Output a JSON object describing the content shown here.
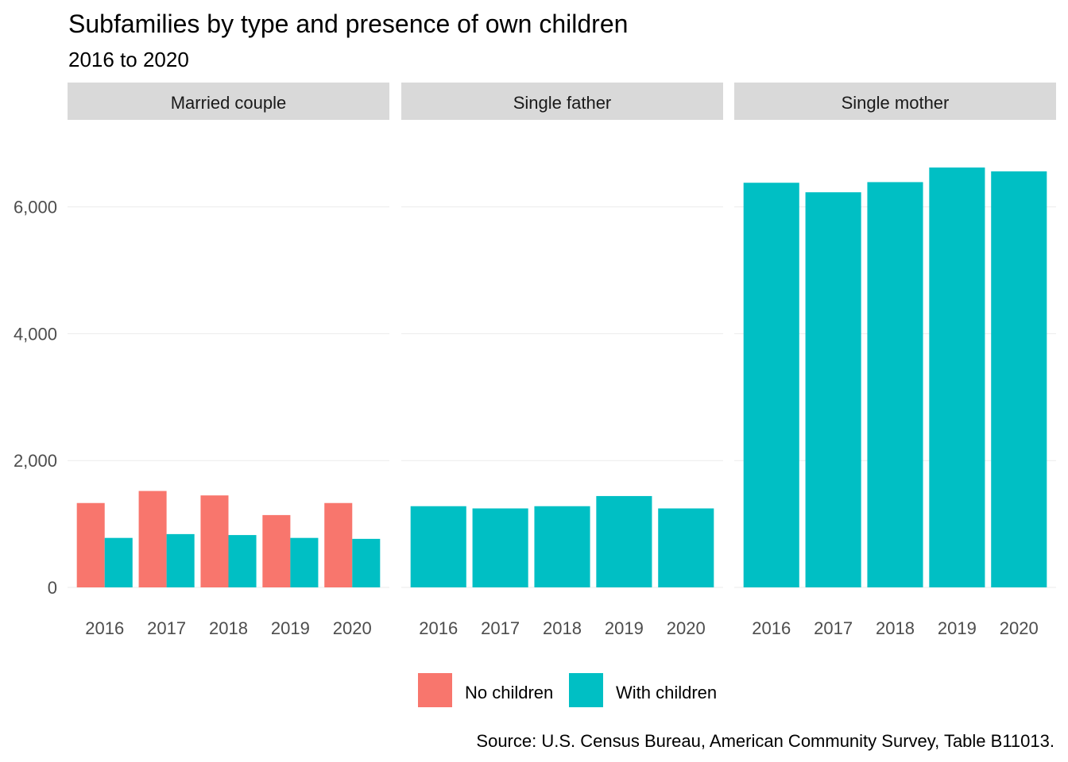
{
  "chart_data": {
    "type": "bar",
    "title": "Subfamilies by type and presence of own children",
    "subtitle": "2016 to 2020",
    "caption": "Source: U.S. Census Bureau, American Community Survey, Table B11013.",
    "xlabel": "",
    "ylabel": "",
    "ylim": [
      0,
      7000
    ],
    "yticks": [
      0,
      2000,
      4000,
      6000
    ],
    "ytick_labels": [
      "0",
      "2,000",
      "4,000",
      "6,000"
    ],
    "categories": [
      "2016",
      "2017",
      "2018",
      "2019",
      "2020"
    ],
    "grid": true,
    "legend_position": "bottom",
    "colors": {
      "No children": "#F8766D",
      "With children": "#00BFC4"
    },
    "legend": [
      {
        "name": "No children",
        "color": "#F8766D"
      },
      {
        "name": "With children",
        "color": "#00BFC4"
      }
    ],
    "facets": [
      {
        "name": "Married couple",
        "series": [
          {
            "name": "No children",
            "values": [
              1330,
              1520,
              1450,
              1140,
              1330
            ]
          },
          {
            "name": "With children",
            "values": [
              780,
              840,
              825,
              780,
              765
            ]
          }
        ]
      },
      {
        "name": "Single father",
        "series": [
          {
            "name": "With children",
            "values": [
              1280,
              1245,
              1280,
              1440,
              1245
            ]
          }
        ]
      },
      {
        "name": "Single mother",
        "series": [
          {
            "name": "With children",
            "values": [
              6380,
              6230,
              6390,
              6620,
              6560
            ]
          }
        ]
      }
    ]
  }
}
